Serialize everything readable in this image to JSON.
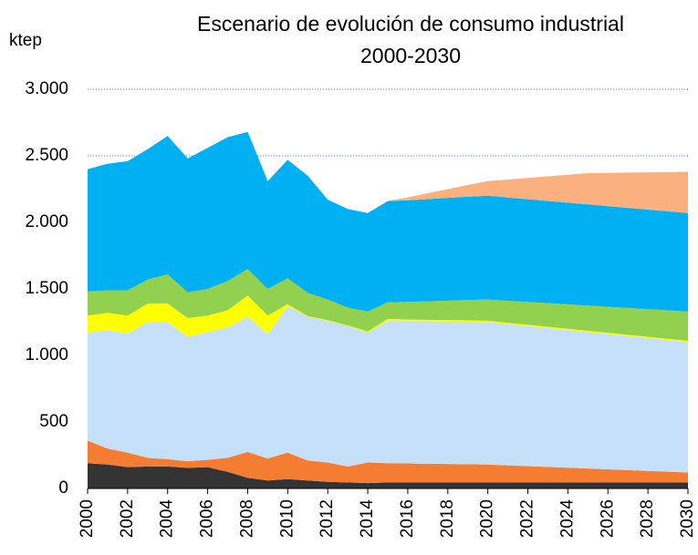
{
  "chart_data": {
    "type": "stacked_area",
    "title": "Escenario de evolución de consumo industrial",
    "subtitle": "2000-2030",
    "y_label": "ktep",
    "x": [
      2000,
      2001,
      2002,
      2003,
      2004,
      2005,
      2006,
      2007,
      2008,
      2009,
      2010,
      2011,
      2012,
      2013,
      2014,
      2015,
      2016,
      2017,
      2018,
      2019,
      2020,
      2021,
      2022,
      2023,
      2024,
      2025,
      2026,
      2027,
      2028,
      2029,
      2030
    ],
    "xlim": [
      2000,
      2030
    ],
    "xticks": [
      2000,
      2002,
      2004,
      2006,
      2008,
      2010,
      2012,
      2014,
      2016,
      2018,
      2020,
      2022,
      2024,
      2026,
      2028,
      2030
    ],
    "ylim": [
      0,
      3000
    ],
    "yticks": [
      0,
      500,
      {
        "value": 1000,
        "label": "1.000"
      },
      {
        "value": 1500,
        "label": "1.500"
      },
      {
        "value": 2000,
        "label": "2.000"
      },
      {
        "value": 2500,
        "label": "2.500"
      },
      {
        "value": 3000,
        "label": "3.000"
      }
    ],
    "grid": true,
    "series": [
      {
        "color": "#333333",
        "values": [
          190,
          180,
          160,
          165,
          165,
          155,
          160,
          125,
          80,
          60,
          70,
          60,
          50,
          45,
          40,
          45,
          45,
          45,
          45,
          45,
          45,
          45,
          45,
          45,
          45,
          45,
          45,
          45,
          45,
          45,
          45
        ]
      },
      {
        "color": "#f57d32",
        "values": [
          170,
          120,
          110,
          65,
          55,
          50,
          55,
          105,
          195,
          165,
          200,
          150,
          145,
          120,
          155,
          145,
          143,
          141,
          139,
          137,
          135,
          129,
          123,
          117,
          111,
          105,
          99,
          93,
          87,
          81,
          75
        ]
      },
      {
        "color": "#c5e0f8",
        "values": [
          810,
          890,
          895,
          1020,
          1030,
          935,
          960,
          980,
          1015,
          935,
          1100,
          1080,
          1065,
          1055,
          975,
          1070,
          1070,
          1070,
          1070,
          1070,
          1070,
          1061,
          1052,
          1043,
          1034,
          1025,
          1016,
          1007,
          998,
          989,
          980
        ]
      },
      {
        "color": "#ffff00",
        "values": [
          130,
          130,
          135,
          140,
          140,
          140,
          125,
          130,
          160,
          140,
          15,
          5,
          5,
          5,
          10,
          15,
          12,
          12,
          12,
          12,
          10,
          10,
          10,
          10,
          10,
          10,
          10,
          10,
          10,
          10,
          10
        ]
      },
      {
        "color": "#92d050",
        "values": [
          180,
          170,
          190,
          180,
          220,
          195,
          200,
          220,
          200,
          200,
          195,
          175,
          155,
          135,
          150,
          125,
          132,
          139,
          146,
          153,
          160,
          166,
          172,
          178,
          184,
          190,
          196,
          202,
          208,
          214,
          220
        ]
      },
      {
        "color": "#00b0f0",
        "values": [
          920,
          950,
          970,
          980,
          1040,
          1005,
          1060,
          1080,
          1030,
          810,
          890,
          880,
          750,
          740,
          740,
          760,
          764,
          768,
          772,
          776,
          780,
          776,
          772,
          768,
          764,
          760,
          756,
          752,
          748,
          744,
          740
        ]
      },
      {
        "color": "#fbb07f",
        "values": [
          0,
          0,
          0,
          0,
          0,
          0,
          0,
          0,
          0,
          0,
          0,
          0,
          0,
          0,
          0,
          0,
          22,
          44,
          66,
          88,
          110,
          135,
          160,
          185,
          210,
          235,
          250,
          265,
          280,
          295,
          310
        ]
      }
    ]
  }
}
